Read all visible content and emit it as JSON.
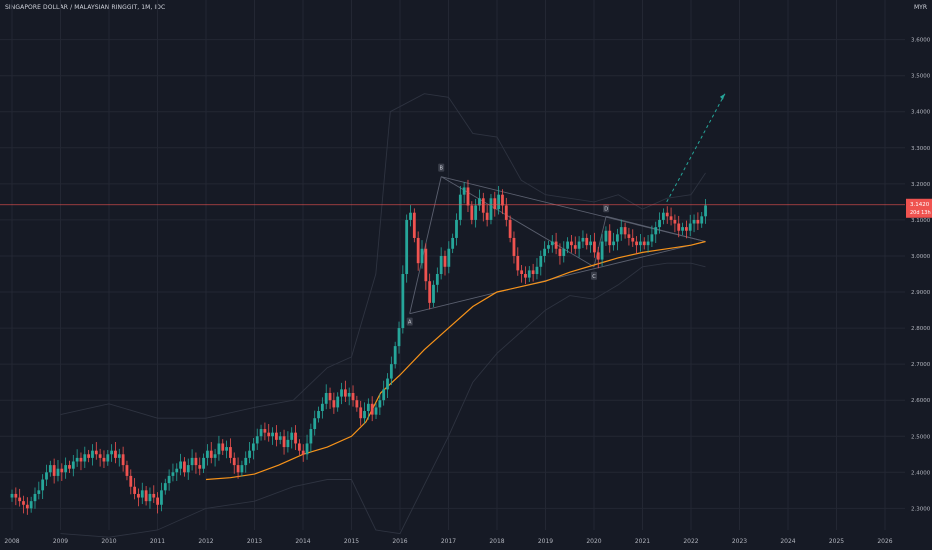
{
  "chart_data": {
    "type": "candlestick",
    "title": "SINGAPORE DOLLAR / MALAYSIAN RINGGIT, 1M, IDC",
    "currency": "MYR",
    "ylim": [
      2.24,
      3.66
    ],
    "xlim": [
      2008.0,
      2026.6
    ],
    "y_ticks": [
      "2.3000",
      "2.4000",
      "2.5000",
      "2.6000",
      "2.7000",
      "2.8000",
      "2.9000",
      "3.0000",
      "3.1000",
      "3.2000",
      "3.3000",
      "3.4000",
      "3.5000",
      "3.6000"
    ],
    "x_ticks": [
      "2008",
      "2009",
      "2010",
      "2011",
      "2012",
      "2013",
      "2014",
      "2015",
      "2016",
      "2017",
      "2018",
      "2019",
      "2020",
      "2021",
      "2022",
      "2023",
      "2024",
      "2025",
      "2026"
    ],
    "last_price": "3.1420",
    "countdown": "20d 13h",
    "last_value": 3.142,
    "grid": true,
    "candles_closes": [
      2.34,
      2.33,
      2.32,
      2.31,
      2.3,
      2.32,
      2.34,
      2.35,
      2.38,
      2.4,
      2.42,
      2.39,
      2.41,
      2.4,
      2.42,
      2.41,
      2.43,
      2.44,
      2.43,
      2.45,
      2.44,
      2.46,
      2.45,
      2.44,
      2.43,
      2.45,
      2.46,
      2.44,
      2.45,
      2.42,
      2.39,
      2.36,
      2.34,
      2.33,
      2.35,
      2.32,
      2.34,
      2.33,
      2.31,
      2.35,
      2.37,
      2.39,
      2.4,
      2.41,
      2.43,
      2.4,
      2.42,
      2.44,
      2.42,
      2.41,
      2.44,
      2.46,
      2.44,
      2.45,
      2.48,
      2.46,
      2.47,
      2.44,
      2.42,
      2.4,
      2.42,
      2.44,
      2.46,
      2.48,
      2.5,
      2.52,
      2.51,
      2.5,
      2.51,
      2.49,
      2.5,
      2.47,
      2.49,
      2.51,
      2.48,
      2.46,
      2.45,
      2.48,
      2.52,
      2.55,
      2.57,
      2.59,
      2.62,
      2.6,
      2.58,
      2.61,
      2.63,
      2.61,
      2.62,
      2.6,
      2.58,
      2.55,
      2.57,
      2.59,
      2.56,
      2.58,
      2.6,
      2.63,
      2.66,
      2.7,
      2.75,
      2.8,
      2.95,
      3.1,
      3.12,
      3.05,
      2.98,
      3.02,
      2.93,
      2.87,
      2.92,
      2.95,
      3.0,
      2.97,
      3.02,
      3.05,
      3.1,
      3.17,
      3.19,
      3.14,
      3.1,
      3.14,
      3.16,
      3.12,
      3.1,
      3.16,
      3.13,
      3.17,
      3.14,
      3.1,
      3.05,
      3.0,
      2.96,
      2.95,
      2.94,
      2.96,
      2.95,
      2.97,
      3.0,
      3.02,
      3.03,
      3.04,
      3.02,
      3.0,
      3.02,
      3.04,
      3.03,
      3.02,
      3.04,
      3.05,
      3.03,
      3.04,
      3.01,
      2.99,
      3.04,
      3.07,
      3.03,
      3.04,
      3.06,
      3.08,
      3.06,
      3.05,
      3.04,
      3.03,
      3.04,
      3.03,
      3.04,
      3.06,
      3.08,
      3.1,
      3.12,
      3.11,
      3.1,
      3.09,
      3.07,
      3.08,
      3.07,
      3.09,
      3.1,
      3.09,
      3.11,
      3.14
    ],
    "moving_average": [
      [
        2012.0,
        2.38
      ],
      [
        2012.5,
        2.385
      ],
      [
        2013.0,
        2.395
      ],
      [
        2013.5,
        2.42
      ],
      [
        2014.0,
        2.45
      ],
      [
        2014.5,
        2.47
      ],
      [
        2015.0,
        2.5
      ],
      [
        2015.3,
        2.54
      ],
      [
        2015.6,
        2.62
      ],
      [
        2016.0,
        2.67
      ],
      [
        2016.5,
        2.74
      ],
      [
        2017.0,
        2.8
      ],
      [
        2017.5,
        2.86
      ],
      [
        2018.0,
        2.9
      ],
      [
        2018.5,
        2.915
      ],
      [
        2019.0,
        2.93
      ],
      [
        2019.5,
        2.955
      ],
      [
        2020.0,
        2.975
      ],
      [
        2020.5,
        2.995
      ],
      [
        2021.0,
        3.01
      ],
      [
        2021.5,
        3.02
      ],
      [
        2022.0,
        3.03
      ],
      [
        2022.3,
        3.04
      ]
    ],
    "band_upper": [
      [
        2009.0,
        2.56
      ],
      [
        2010.0,
        2.59
      ],
      [
        2011.0,
        2.55
      ],
      [
        2012.0,
        2.55
      ],
      [
        2013.0,
        2.58
      ],
      [
        2013.8,
        2.6
      ],
      [
        2014.5,
        2.69
      ],
      [
        2015.0,
        2.72
      ],
      [
        2015.5,
        2.95
      ],
      [
        2015.8,
        3.4
      ],
      [
        2016.5,
        3.45
      ],
      [
        2017.0,
        3.44
      ],
      [
        2017.5,
        3.34
      ],
      [
        2018.0,
        3.33
      ],
      [
        2018.5,
        3.21
      ],
      [
        2019.0,
        3.17
      ],
      [
        2019.5,
        3.16
      ],
      [
        2020.0,
        3.15
      ],
      [
        2020.5,
        3.17
      ],
      [
        2021.0,
        3.13
      ],
      [
        2021.5,
        3.16
      ],
      [
        2022.0,
        3.17
      ],
      [
        2022.3,
        3.23
      ]
    ],
    "band_lower": [
      [
        2009.0,
        2.23
      ],
      [
        2010.0,
        2.22
      ],
      [
        2011.0,
        2.24
      ],
      [
        2012.0,
        2.3
      ],
      [
        2013.0,
        2.32
      ],
      [
        2013.8,
        2.36
      ],
      [
        2014.5,
        2.38
      ],
      [
        2015.0,
        2.38
      ],
      [
        2015.5,
        2.24
      ],
      [
        2016.0,
        2.23
      ],
      [
        2017.0,
        2.5
      ],
      [
        2017.5,
        2.65
      ],
      [
        2018.0,
        2.73
      ],
      [
        2018.5,
        2.79
      ],
      [
        2019.0,
        2.85
      ],
      [
        2019.5,
        2.89
      ],
      [
        2020.0,
        2.88
      ],
      [
        2020.5,
        2.92
      ],
      [
        2021.0,
        2.97
      ],
      [
        2021.5,
        2.98
      ],
      [
        2022.0,
        2.98
      ],
      [
        2022.3,
        2.97
      ]
    ],
    "triangle": {
      "a": [
        2016.2,
        2.84
      ],
      "b": [
        2016.85,
        3.22
      ],
      "c": [
        2020.0,
        2.97
      ],
      "d": [
        2020.25,
        3.11
      ],
      "e": [
        2022.3,
        3.04
      ]
    },
    "labels": [
      "B",
      "A",
      "C",
      "D"
    ],
    "projection": [
      [
        2021.5,
        3.15
      ],
      [
        2022.7,
        3.45
      ]
    ]
  }
}
